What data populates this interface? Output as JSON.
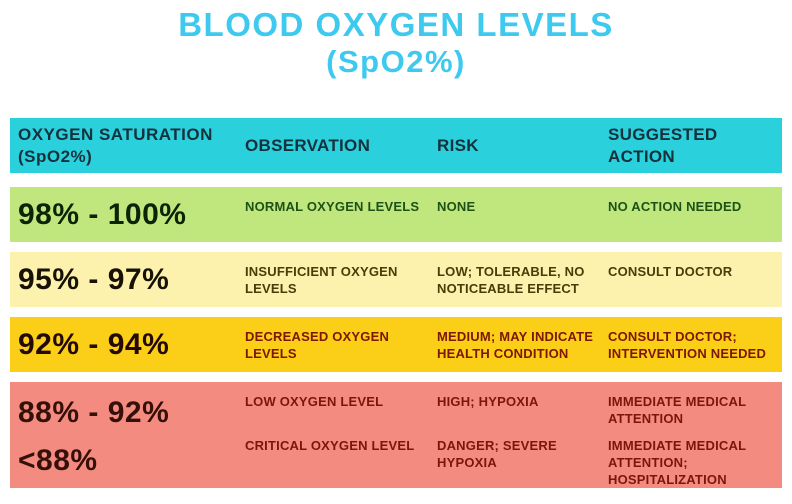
{
  "title": {
    "line1": "BLOOD OXYGEN LEVELS",
    "line2": "(SpO2%)"
  },
  "colors": {
    "title": "#3ec9ee",
    "header-bg": "#2ad0dc",
    "header-text": "#14313c",
    "row1-bg": "#c0e67e",
    "row1-text": "#1d5214",
    "row1-range": "#0c2306",
    "row2-bg": "#fcf2ad",
    "row2-text": "#4b3b06",
    "row2-range": "#171106",
    "row3-bg": "#fbcf17",
    "row3-text": "#7c1605",
    "row3-range": "#230a05",
    "row4-bg": "#f48b80",
    "row4-text": "#7e150b",
    "row4-range": "#351009"
  },
  "table": {
    "header": {
      "saturation_line1": "OXYGEN SATURATION",
      "saturation_line2": "(SpO2%)",
      "observation": "OBSERVATION",
      "risk": "RISK",
      "action": "SUGGESTED ACTION"
    },
    "rows": [
      {
        "range": "98% - 100%",
        "observation": "NORMAL OXYGEN LEVELS",
        "risk": "NONE",
        "action": "NO ACTION NEEDED"
      },
      {
        "range": "95% - 97%",
        "observation": "INSUFFICIENT OXYGEN LEVELS",
        "risk": "LOW; TOLERABLE, NO NOTICEABLE EFFECT",
        "action": "CONSULT DOCTOR"
      },
      {
        "range": "92% - 94%",
        "observation": "DECREASED OXYGEN LEVELS",
        "risk": "MEDIUM; MAY INDICATE HEALTH CONDITION",
        "action": "CONSULT DOCTOR; INTERVENTION NEEDED"
      },
      {
        "range": "88% - 92%",
        "observation": "LOW OXYGEN LEVEL",
        "risk": "HIGH; HYPOXIA",
        "action": "IMMEDIATE MEDICAL ATTENTION"
      },
      {
        "range": "<88%",
        "observation": "CRITICAL OXYGEN LEVEL",
        "risk": "DANGER; SEVERE HYPOXIA",
        "action": "IMMEDIATE MEDICAL ATTENTION; HOSPITALIZATION"
      }
    ]
  },
  "chart_data": {
    "type": "table",
    "title": "BLOOD OXYGEN LEVELS (SpO2%)",
    "columns": [
      "OXYGEN SATURATION (SpO2%)",
      "OBSERVATION",
      "RISK",
      "SUGGESTED ACTION"
    ],
    "rows": [
      [
        "98% - 100%",
        "NORMAL OXYGEN LEVELS",
        "NONE",
        "NO ACTION NEEDED"
      ],
      [
        "95% - 97%",
        "INSUFFICIENT OXYGEN LEVELS",
        "LOW; TOLERABLE, NO NOTICEABLE EFFECT",
        "CONSULT DOCTOR"
      ],
      [
        "92% - 94%",
        "DECREASED OXYGEN LEVELS",
        "MEDIUM; MAY INDICATE HEALTH CONDITION",
        "CONSULT DOCTOR; INTERVENTION NEEDED"
      ],
      [
        "88% - 92%",
        "LOW OXYGEN LEVEL",
        "HIGH; HYPOXIA",
        "IMMEDIATE MEDICAL ATTENTION"
      ],
      [
        "<88%",
        "CRITICAL OXYGEN LEVEL",
        "DANGER; SEVERE HYPOXIA",
        "IMMEDIATE MEDICAL ATTENTION; HOSPITALIZATION"
      ]
    ],
    "row_band_colors": [
      "#c0e67e",
      "#fcf2ad",
      "#fbcf17",
      "#f48b80",
      "#f48b80"
    ],
    "legend_position": "none",
    "grid": false
  }
}
